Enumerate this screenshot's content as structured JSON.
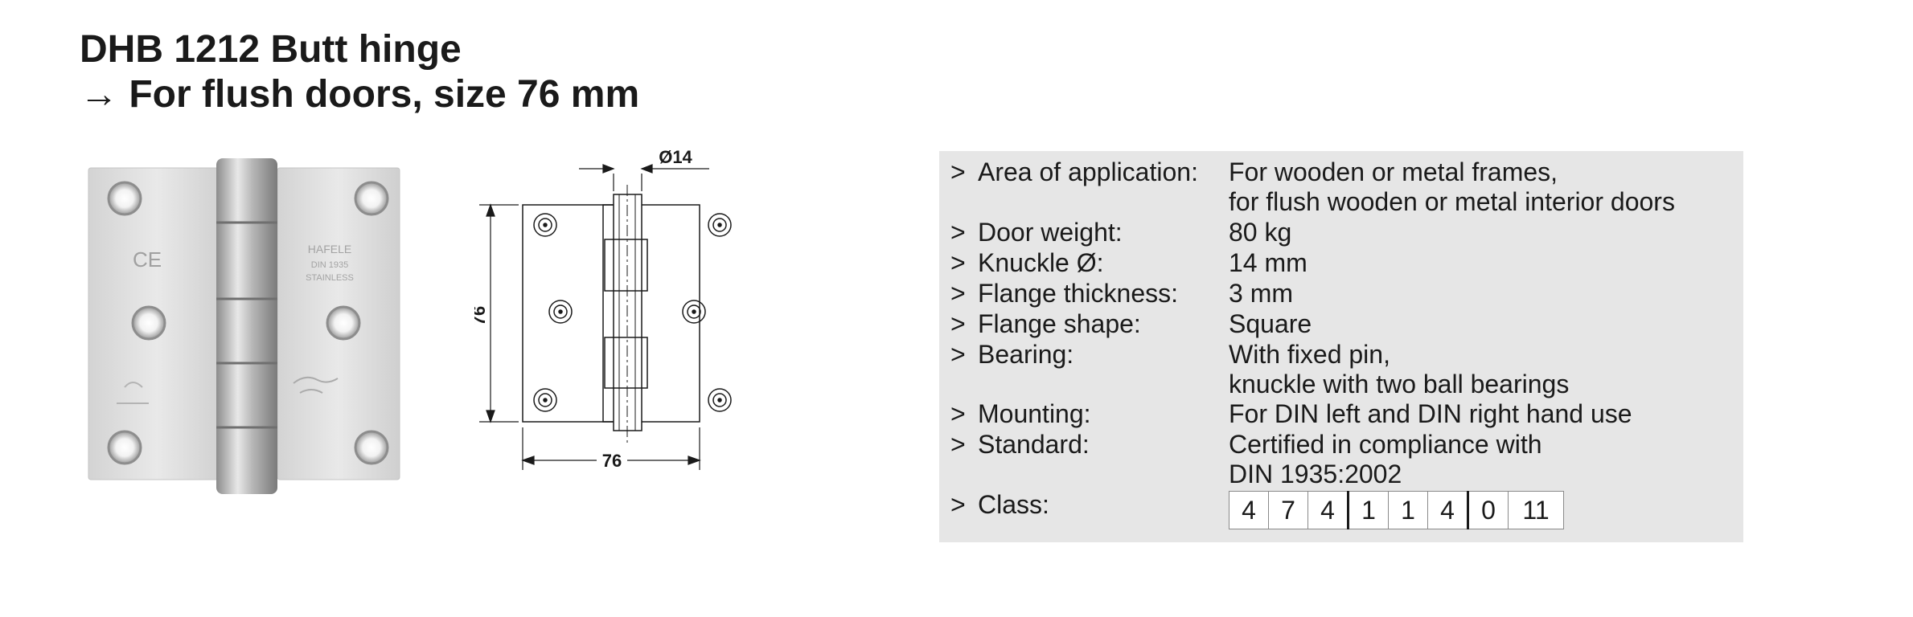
{
  "header": {
    "title_line1": "DHB 1212 Butt hinge",
    "title_line2": "→ For flush doors, size 76 mm"
  },
  "drawing": {
    "diameter_label": "Ø14",
    "height_label": "76",
    "width_label": "76"
  },
  "specs": {
    "bullet": ">",
    "rows": [
      {
        "label": "Area of application:",
        "value": [
          "For wooden or metal frames,",
          "for flush wooden or metal interior doors"
        ]
      },
      {
        "label": "Door weight:",
        "value": [
          "80 kg"
        ]
      },
      {
        "label": "Knuckle Ø:",
        "value": [
          "14 mm"
        ]
      },
      {
        "label": "Flange thickness:",
        "value": [
          "3 mm"
        ]
      },
      {
        "label": "Flange shape:",
        "value": [
          "Square"
        ]
      },
      {
        "label": "Bearing:",
        "value": [
          "With fixed pin,",
          "knuckle with two ball bearings"
        ]
      },
      {
        "label": "Mounting:",
        "value": [
          "For DIN left and DIN right hand use"
        ]
      },
      {
        "label": "Standard:",
        "value": [
          "Certified in compliance with",
          "DIN 1935:2002"
        ]
      },
      {
        "label": "Class:",
        "value": []
      }
    ],
    "class_values": [
      "4",
      "7",
      "4",
      "1",
      "1",
      "4",
      "0",
      "11"
    ]
  },
  "photo": {
    "stamp_text": [
      "HAFELE",
      "DIN 1935",
      "STAINLESS"
    ],
    "ce_mark": "CE"
  }
}
